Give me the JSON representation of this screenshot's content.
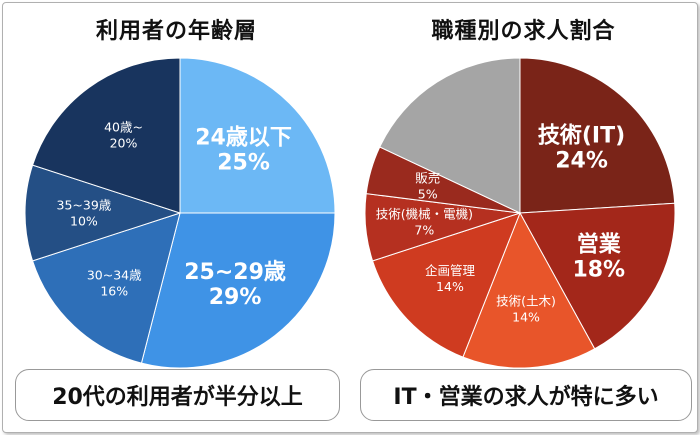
{
  "chart_data": [
    {
      "type": "pie",
      "title": "利用者の年齢層",
      "slices": [
        {
          "label": "24歳以下",
          "value": 25,
          "value_label": "25%",
          "color": "#6cb8f5",
          "emphasis": true
        },
        {
          "label": "25~29歳",
          "value": 29,
          "value_label": "29%",
          "color": "#3f93e6",
          "emphasis": true
        },
        {
          "label": "30~34歳",
          "value": 16,
          "value_label": "16%",
          "color": "#2e6fb8",
          "emphasis": false
        },
        {
          "label": "35~39歳",
          "value": 10,
          "value_label": "10%",
          "color": "#244f85",
          "emphasis": false
        },
        {
          "label": "40歳~",
          "value": 20,
          "value_label": "20%",
          "color": "#18345e",
          "emphasis": false
        }
      ],
      "start_angle": "12 o'clock",
      "direction": "clockwise",
      "caption": "20代の利用者が半分以上"
    },
    {
      "type": "pie",
      "title": "職種別の求人割合",
      "slices": [
        {
          "label": "技術(IT)",
          "value": 24,
          "value_label": "24%",
          "color": "#7a2418",
          "emphasis": true
        },
        {
          "label": "営業",
          "value": 18,
          "value_label": "18%",
          "color": "#a3271a",
          "emphasis": true
        },
        {
          "label": "技術(土木)",
          "value": 14,
          "value_label": "14%",
          "color": "#e8552a",
          "emphasis": false
        },
        {
          "label": "企画管理",
          "value": 14,
          "value_label": "14%",
          "color": "#cf3b20",
          "emphasis": false
        },
        {
          "label": "技術(機械・電機)",
          "value": 7,
          "value_label": "7%",
          "color": "#b53020",
          "emphasis": false
        },
        {
          "label": "販売",
          "value": 5,
          "value_label": "5%",
          "color": "#9a2a1e",
          "emphasis": false
        },
        {
          "label": "",
          "value": 18,
          "value_label": "",
          "color": "#a5a5a5",
          "emphasis": false
        }
      ],
      "start_angle": "12 o'clock",
      "direction": "clockwise",
      "caption": "IT・営業の求人が特に多い"
    }
  ]
}
